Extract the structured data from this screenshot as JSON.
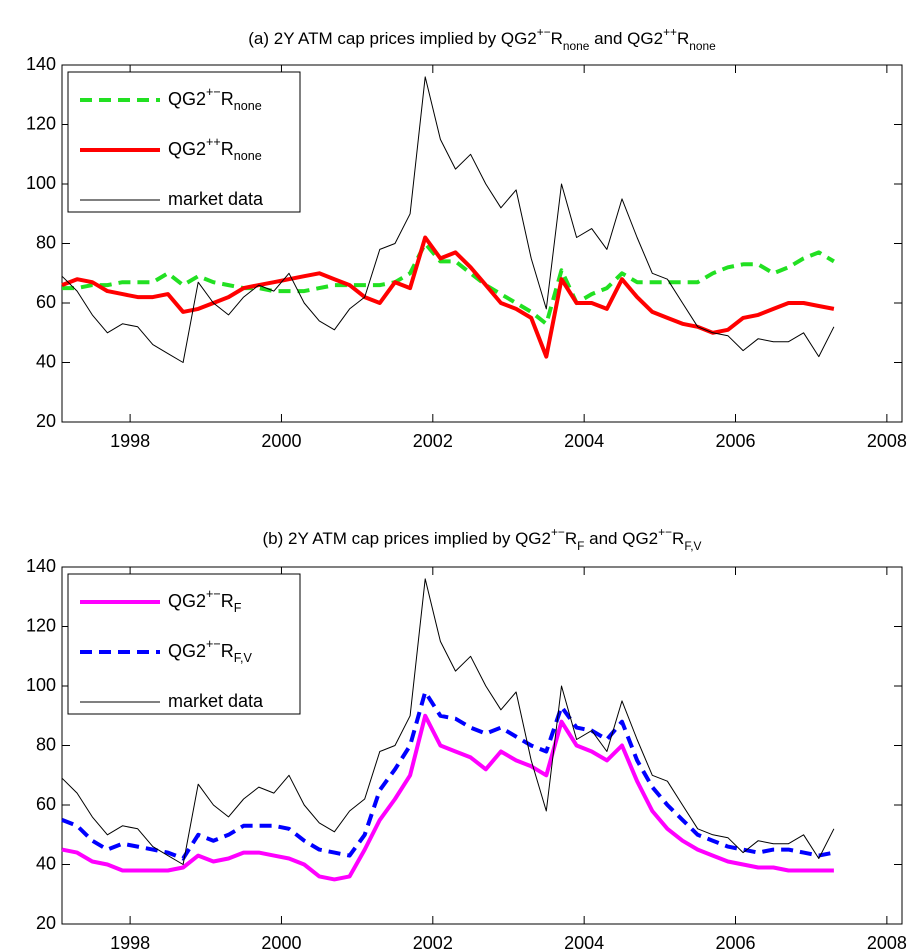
{
  "chart_data": [
    {
      "type": "line",
      "title": [
        "(a) 2Y ATM cap prices implied by QG2",
        {
          "sup": "+−"
        },
        "R",
        {
          "sub": "none"
        },
        " and QG2",
        {
          "sup": "++"
        },
        "R",
        {
          "sub": "none"
        }
      ],
      "x": [
        1997.1,
        1997.3,
        1997.5,
        1997.7,
        1997.9,
        1998.1,
        1998.3,
        1998.5,
        1998.7,
        1998.9,
        1999.1,
        1999.3,
        1999.5,
        1999.7,
        1999.9,
        2000.1,
        2000.3,
        2000.5,
        2000.7,
        2000.9,
        2001.1,
        2001.3,
        2001.5,
        2001.7,
        2001.9,
        2002.1,
        2002.3,
        2002.5,
        2002.7,
        2002.9,
        2003.1,
        2003.3,
        2003.5,
        2003.7,
        2003.9,
        2004.1,
        2004.3,
        2004.5,
        2004.7,
        2004.9,
        2005.1,
        2005.3,
        2005.5,
        2005.7,
        2005.9,
        2006.1,
        2006.3,
        2006.5,
        2006.7,
        2006.9,
        2007.1,
        2007.3
      ],
      "series": [
        {
          "name": [
            "QG2",
            {
              "sup": "+−"
            },
            "R",
            {
              "sub": "none"
            }
          ],
          "color": "#22e022",
          "dashed": true,
          "width": 4,
          "values": [
            65,
            65,
            66,
            66,
            67,
            67,
            67,
            70,
            66,
            69,
            67,
            66,
            65,
            65,
            64,
            64,
            64,
            65,
            66,
            66,
            66,
            66,
            67,
            70,
            80,
            74,
            74,
            70,
            66,
            63,
            60,
            57,
            53,
            71,
            60,
            63,
            65,
            70,
            67,
            67,
            67,
            67,
            67,
            70,
            72,
            73,
            73,
            70,
            72,
            75,
            77,
            74
          ]
        },
        {
          "name": [
            "QG2",
            {
              "sup": "++"
            },
            "R",
            {
              "sub": "none"
            }
          ],
          "color": "#ff0000",
          "dashed": false,
          "width": 4,
          "values": [
            66,
            68,
            67,
            64,
            63,
            62,
            62,
            63,
            57,
            58,
            60,
            62,
            65,
            66,
            67,
            68,
            69,
            70,
            68,
            66,
            62,
            60,
            67,
            65,
            82,
            75,
            77,
            72,
            66,
            60,
            58,
            55,
            42,
            68,
            60,
            60,
            58,
            68,
            62,
            57,
            55,
            53,
            52,
            50,
            51,
            55,
            56,
            58,
            60,
            60,
            59,
            58
          ]
        },
        {
          "name": [
            "market data"
          ],
          "color": "#000000",
          "dashed": false,
          "width": 1,
          "values": [
            69,
            64,
            56,
            50,
            53,
            52,
            46,
            43,
            40,
            67,
            60,
            56,
            62,
            66,
            64,
            70,
            60,
            54,
            51,
            58,
            62,
            78,
            80,
            90,
            136,
            115,
            105,
            110,
            100,
            92,
            98,
            75,
            58,
            100,
            82,
            85,
            78,
            95,
            82,
            70,
            68,
            60,
            52,
            50,
            49,
            44,
            48,
            47,
            47,
            50,
            42,
            52
          ]
        }
      ],
      "xlim": [
        1997.1,
        2008.2
      ],
      "ylim": [
        20,
        140
      ],
      "xticks": [
        1998,
        2000,
        2002,
        2004,
        2006,
        2008
      ],
      "yticks": [
        20,
        40,
        60,
        80,
        100,
        120,
        140
      ],
      "legend": "upper left"
    },
    {
      "type": "line",
      "title": [
        "(b) 2Y ATM cap prices implied by QG2",
        {
          "sup": "+−"
        },
        "R",
        {
          "sub": "F"
        },
        " and QG2",
        {
          "sup": "+−"
        },
        "R",
        {
          "sub": "F,V"
        }
      ],
      "x": [
        1997.1,
        1997.3,
        1997.5,
        1997.7,
        1997.9,
        1998.1,
        1998.3,
        1998.5,
        1998.7,
        1998.9,
        1999.1,
        1999.3,
        1999.5,
        1999.7,
        1999.9,
        2000.1,
        2000.3,
        2000.5,
        2000.7,
        2000.9,
        2001.1,
        2001.3,
        2001.5,
        2001.7,
        2001.9,
        2002.1,
        2002.3,
        2002.5,
        2002.7,
        2002.9,
        2003.1,
        2003.3,
        2003.5,
        2003.7,
        2003.9,
        2004.1,
        2004.3,
        2004.5,
        2004.7,
        2004.9,
        2005.1,
        2005.3,
        2005.5,
        2005.7,
        2005.9,
        2006.1,
        2006.3,
        2006.5,
        2006.7,
        2006.9,
        2007.1,
        2007.3
      ],
      "series": [
        {
          "name": [
            "QG2",
            {
              "sup": "+−"
            },
            "R",
            {
              "sub": "F"
            }
          ],
          "color": "#ff00ff",
          "dashed": false,
          "width": 4,
          "values": [
            45,
            44,
            41,
            40,
            38,
            38,
            38,
            38,
            39,
            43,
            41,
            42,
            44,
            44,
            43,
            42,
            40,
            36,
            35,
            36,
            45,
            55,
            62,
            70,
            90,
            80,
            78,
            76,
            72,
            78,
            75,
            73,
            70,
            88,
            80,
            78,
            75,
            80,
            68,
            58,
            52,
            48,
            45,
            43,
            41,
            40,
            39,
            39,
            38,
            38,
            38,
            38
          ]
        },
        {
          "name": [
            "QG2",
            {
              "sup": "+−"
            },
            "R",
            {
              "sub": "F,V"
            }
          ],
          "color": "#0000ff",
          "dashed": true,
          "width": 4,
          "values": [
            55,
            53,
            48,
            45,
            47,
            46,
            45,
            44,
            42,
            50,
            48,
            50,
            53,
            53,
            53,
            52,
            48,
            45,
            44,
            43,
            50,
            65,
            72,
            80,
            98,
            90,
            89,
            86,
            84,
            86,
            83,
            80,
            78,
            93,
            86,
            85,
            82,
            88,
            75,
            66,
            60,
            55,
            50,
            48,
            46,
            45,
            44,
            45,
            45,
            44,
            43,
            44
          ]
        },
        {
          "name": [
            "market data"
          ],
          "color": "#000000",
          "dashed": false,
          "width": 1,
          "values": [
            69,
            64,
            56,
            50,
            53,
            52,
            46,
            43,
            40,
            67,
            60,
            56,
            62,
            66,
            64,
            70,
            60,
            54,
            51,
            58,
            62,
            78,
            80,
            90,
            136,
            115,
            105,
            110,
            100,
            92,
            98,
            75,
            58,
            100,
            82,
            85,
            78,
            95,
            82,
            70,
            68,
            60,
            52,
            50,
            49,
            44,
            48,
            47,
            47,
            50,
            42,
            52
          ]
        }
      ],
      "xlim": [
        1997.1,
        2008.2
      ],
      "ylim": [
        20,
        140
      ],
      "xticks": [
        1998,
        2000,
        2002,
        2004,
        2006,
        2008
      ],
      "yticks": [
        20,
        40,
        60,
        80,
        100,
        120,
        140
      ],
      "legend": "upper left"
    }
  ]
}
